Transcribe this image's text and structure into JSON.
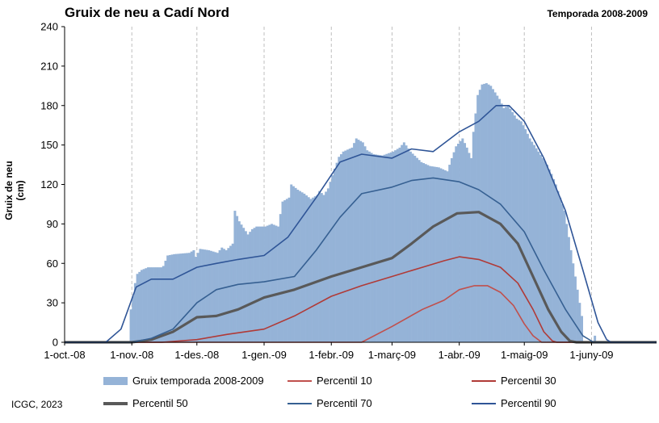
{
  "header": {
    "title": "Gruix de neu a Cadí Nord",
    "season": "Temporada 2008-2009"
  },
  "footer": {
    "credit": "ICGC, 2023"
  },
  "colors": {
    "bars": "#95b3d7",
    "p10": "#c0504d",
    "p30": "#b03a37",
    "p50": "#595959",
    "p70": "#366092",
    "p90": "#2f5597",
    "grid": "#bfbfbf"
  },
  "chart_data": {
    "type": "bar",
    "xlabel": "",
    "ylabel": "Gruix de neu (cm)",
    "ylim": [
      0,
      240
    ],
    "yticks": [
      0,
      30,
      60,
      90,
      120,
      150,
      180,
      210,
      240
    ],
    "xlim": [
      "2008-10-01",
      "2009-07-01"
    ],
    "xticks": [
      {
        "date": "2008-10-01",
        "label": "1-oct.-08"
      },
      {
        "date": "2008-11-01",
        "label": "1-nov.-08"
      },
      {
        "date": "2008-12-01",
        "label": "1-des.-08"
      },
      {
        "date": "2009-01-01",
        "label": "1-gen.-09"
      },
      {
        "date": "2009-02-01",
        "label": "1-febr.-09"
      },
      {
        "date": "2009-03-01",
        "label": "1-març-09"
      },
      {
        "date": "2009-04-01",
        "label": "1-abr.-09"
      },
      {
        "date": "2009-05-01",
        "label": "1-maig-09"
      },
      {
        "date": "2009-06-01",
        "label": "1-juny-09"
      }
    ],
    "grid": "vertical",
    "legend_position": "bottom",
    "series": [
      {
        "name": "Gruix temporada 2008-2009",
        "kind": "bar",
        "points": [
          [
            "2008-10-30",
            0
          ],
          [
            "2008-10-31",
            25
          ],
          [
            "2008-11-01",
            35
          ],
          [
            "2008-11-02",
            45
          ],
          [
            "2008-11-03",
            52
          ],
          [
            "2008-11-05",
            55
          ],
          [
            "2008-11-08",
            57
          ],
          [
            "2008-11-14",
            57
          ],
          [
            "2008-11-15",
            58
          ],
          [
            "2008-11-17",
            66
          ],
          [
            "2008-11-20",
            67
          ],
          [
            "2008-11-27",
            68
          ],
          [
            "2008-11-29",
            70
          ],
          [
            "2008-11-30",
            65
          ],
          [
            "2008-12-02",
            71
          ],
          [
            "2008-12-06",
            70
          ],
          [
            "2008-12-08",
            69
          ],
          [
            "2008-12-10",
            68
          ],
          [
            "2008-12-12",
            72
          ],
          [
            "2008-12-14",
            70
          ],
          [
            "2008-12-17",
            75
          ],
          [
            "2008-12-18",
            100
          ],
          [
            "2008-12-20",
            92
          ],
          [
            "2008-12-24",
            82
          ],
          [
            "2008-12-26",
            86
          ],
          [
            "2008-12-28",
            88
          ],
          [
            "2009-01-01",
            88
          ],
          [
            "2009-01-04",
            90
          ],
          [
            "2009-01-07",
            88
          ],
          [
            "2009-01-09",
            107
          ],
          [
            "2009-01-12",
            110
          ],
          [
            "2009-01-13",
            120
          ],
          [
            "2009-01-16",
            116
          ],
          [
            "2009-01-19",
            113
          ],
          [
            "2009-01-22",
            109
          ],
          [
            "2009-01-25",
            112
          ],
          [
            "2009-01-26",
            115
          ],
          [
            "2009-01-28",
            112
          ],
          [
            "2009-01-30",
            117
          ],
          [
            "2009-02-02",
            132
          ],
          [
            "2009-02-04",
            141
          ],
          [
            "2009-02-06",
            145
          ],
          [
            "2009-02-10",
            148
          ],
          [
            "2009-02-12",
            155
          ],
          [
            "2009-02-15",
            152
          ],
          [
            "2009-02-17",
            146
          ],
          [
            "2009-02-20",
            143
          ],
          [
            "2009-02-24",
            142
          ],
          [
            "2009-03-01",
            145
          ],
          [
            "2009-03-04",
            148
          ],
          [
            "2009-03-06",
            152
          ],
          [
            "2009-03-09",
            145
          ],
          [
            "2009-03-14",
            137
          ],
          [
            "2009-03-18",
            134
          ],
          [
            "2009-03-22",
            133
          ],
          [
            "2009-03-26",
            130
          ],
          [
            "2009-03-28",
            140
          ],
          [
            "2009-03-30",
            149
          ],
          [
            "2009-04-02",
            155
          ],
          [
            "2009-04-04",
            148
          ],
          [
            "2009-04-06",
            140
          ],
          [
            "2009-04-07",
            160
          ],
          [
            "2009-04-09",
            188
          ],
          [
            "2009-04-11",
            196
          ],
          [
            "2009-04-13",
            197
          ],
          [
            "2009-04-15",
            195
          ],
          [
            "2009-04-17",
            190
          ],
          [
            "2009-04-19",
            185
          ],
          [
            "2009-04-21",
            178
          ],
          [
            "2009-04-23",
            180
          ],
          [
            "2009-04-25",
            175
          ],
          [
            "2009-04-27",
            170
          ],
          [
            "2009-04-29",
            168
          ],
          [
            "2009-05-01",
            162
          ],
          [
            "2009-05-03",
            155
          ],
          [
            "2009-05-05",
            150
          ],
          [
            "2009-05-07",
            145
          ],
          [
            "2009-05-09",
            140
          ],
          [
            "2009-05-11",
            135
          ],
          [
            "2009-05-13",
            128
          ],
          [
            "2009-05-15",
            120
          ],
          [
            "2009-05-17",
            110
          ],
          [
            "2009-05-19",
            100
          ],
          [
            "2009-05-21",
            80
          ],
          [
            "2009-05-23",
            60
          ],
          [
            "2009-05-25",
            40
          ],
          [
            "2009-05-27",
            20
          ],
          [
            "2009-05-28",
            0
          ],
          [
            "2009-06-01",
            0
          ],
          [
            "2009-06-02",
            5
          ],
          [
            "2009-06-03",
            0
          ]
        ]
      },
      {
        "name": "Percentil 10",
        "kind": "line",
        "points": [
          [
            "2008-10-01",
            0
          ],
          [
            "2009-02-15",
            0
          ],
          [
            "2009-03-01",
            12
          ],
          [
            "2009-03-15",
            25
          ],
          [
            "2009-03-25",
            32
          ],
          [
            "2009-04-01",
            40
          ],
          [
            "2009-04-08",
            43
          ],
          [
            "2009-04-14",
            43
          ],
          [
            "2009-04-20",
            38
          ],
          [
            "2009-04-26",
            28
          ],
          [
            "2009-05-01",
            14
          ],
          [
            "2009-05-05",
            5
          ],
          [
            "2009-05-09",
            0
          ],
          [
            "2009-07-01",
            0
          ]
        ]
      },
      {
        "name": "Percentil 30",
        "kind": "line",
        "points": [
          [
            "2008-10-01",
            0
          ],
          [
            "2008-11-01",
            0
          ],
          [
            "2008-11-15",
            0
          ],
          [
            "2008-12-01",
            2
          ],
          [
            "2008-12-15",
            6
          ],
          [
            "2009-01-01",
            10
          ],
          [
            "2009-01-15",
            20
          ],
          [
            "2009-02-01",
            35
          ],
          [
            "2009-02-15",
            43
          ],
          [
            "2009-03-01",
            50
          ],
          [
            "2009-03-15",
            57
          ],
          [
            "2009-03-25",
            62
          ],
          [
            "2009-04-01",
            65
          ],
          [
            "2009-04-10",
            63
          ],
          [
            "2009-04-20",
            57
          ],
          [
            "2009-04-28",
            45
          ],
          [
            "2009-05-05",
            25
          ],
          [
            "2009-05-10",
            8
          ],
          [
            "2009-05-14",
            1
          ],
          [
            "2009-05-16",
            0
          ],
          [
            "2009-07-01",
            0
          ]
        ]
      },
      {
        "name": "Percentil 50",
        "kind": "line",
        "points": [
          [
            "2008-10-01",
            0
          ],
          [
            "2008-11-01",
            0
          ],
          [
            "2008-11-10",
            2
          ],
          [
            "2008-11-20",
            8
          ],
          [
            "2008-12-01",
            19
          ],
          [
            "2008-12-10",
            20
          ],
          [
            "2008-12-20",
            25
          ],
          [
            "2009-01-01",
            34
          ],
          [
            "2009-01-15",
            40
          ],
          [
            "2009-02-01",
            50
          ],
          [
            "2009-02-15",
            57
          ],
          [
            "2009-03-01",
            64
          ],
          [
            "2009-03-10",
            75
          ],
          [
            "2009-03-20",
            88
          ],
          [
            "2009-03-31",
            98
          ],
          [
            "2009-04-10",
            99
          ],
          [
            "2009-04-20",
            90
          ],
          [
            "2009-04-28",
            75
          ],
          [
            "2009-05-05",
            50
          ],
          [
            "2009-05-12",
            25
          ],
          [
            "2009-05-18",
            8
          ],
          [
            "2009-05-22",
            1
          ],
          [
            "2009-05-25",
            0
          ],
          [
            "2009-07-01",
            0
          ]
        ]
      },
      {
        "name": "Percentil 70",
        "kind": "line",
        "points": [
          [
            "2008-10-01",
            0
          ],
          [
            "2008-11-01",
            0
          ],
          [
            "2008-11-10",
            3
          ],
          [
            "2008-11-20",
            10
          ],
          [
            "2008-12-01",
            30
          ],
          [
            "2008-12-10",
            40
          ],
          [
            "2008-12-20",
            44
          ],
          [
            "2009-01-01",
            46
          ],
          [
            "2009-01-15",
            50
          ],
          [
            "2009-01-25",
            70
          ],
          [
            "2009-02-05",
            95
          ],
          [
            "2009-02-15",
            113
          ],
          [
            "2009-03-01",
            118
          ],
          [
            "2009-03-10",
            123
          ],
          [
            "2009-03-20",
            125
          ],
          [
            "2009-04-01",
            122
          ],
          [
            "2009-04-10",
            116
          ],
          [
            "2009-04-20",
            105
          ],
          [
            "2009-05-01",
            84
          ],
          [
            "2009-05-10",
            55
          ],
          [
            "2009-05-20",
            25
          ],
          [
            "2009-05-28",
            5
          ],
          [
            "2009-06-02",
            0
          ],
          [
            "2009-07-01",
            0
          ]
        ]
      },
      {
        "name": "Percentil 90",
        "kind": "line",
        "points": [
          [
            "2008-10-01",
            0
          ],
          [
            "2008-10-20",
            0
          ],
          [
            "2008-10-27",
            10
          ],
          [
            "2008-11-03",
            42
          ],
          [
            "2008-11-10",
            48
          ],
          [
            "2008-11-20",
            48
          ],
          [
            "2008-12-01",
            57
          ],
          [
            "2008-12-10",
            60
          ],
          [
            "2008-12-20",
            63
          ],
          [
            "2009-01-01",
            66
          ],
          [
            "2009-01-12",
            80
          ],
          [
            "2009-01-25",
            110
          ],
          [
            "2009-02-05",
            137
          ],
          [
            "2009-02-15",
            143
          ],
          [
            "2009-03-01",
            140
          ],
          [
            "2009-03-10",
            147
          ],
          [
            "2009-03-20",
            145
          ],
          [
            "2009-04-01",
            160
          ],
          [
            "2009-04-10",
            168
          ],
          [
            "2009-04-18",
            180
          ],
          [
            "2009-04-24",
            180
          ],
          [
            "2009-05-01",
            168
          ],
          [
            "2009-05-10",
            140
          ],
          [
            "2009-05-20",
            100
          ],
          [
            "2009-05-28",
            55
          ],
          [
            "2009-06-04",
            15
          ],
          [
            "2009-06-08",
            2
          ],
          [
            "2009-06-10",
            0
          ],
          [
            "2009-07-01",
            0
          ]
        ]
      }
    ]
  }
}
